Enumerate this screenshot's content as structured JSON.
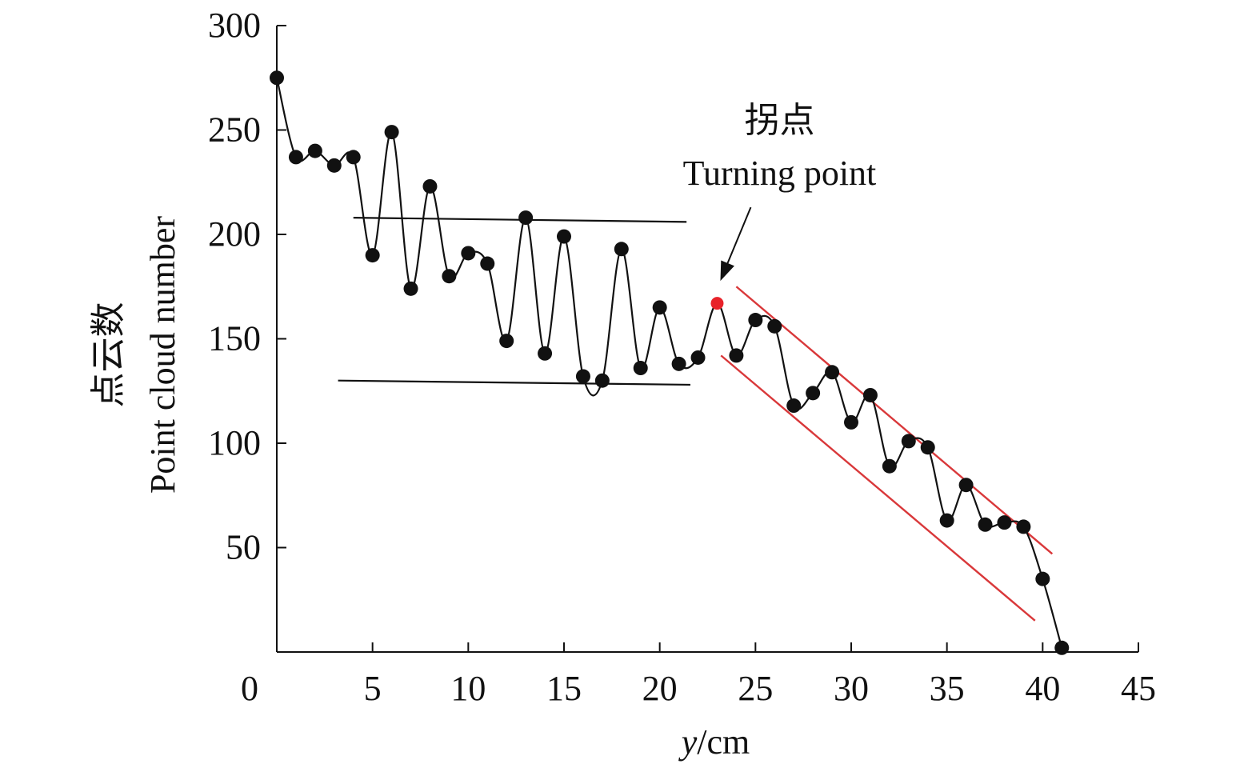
{
  "chart_data": {
    "type": "line",
    "title": "",
    "xlabel_italic": "y",
    "xlabel_unit": "/cm",
    "ylabel_cn": "点云数",
    "ylabel_en": "Point cloud number",
    "xlim": [
      0,
      45
    ],
    "ylim": [
      0,
      300
    ],
    "x_ticks": [
      5,
      10,
      15,
      20,
      25,
      30,
      35,
      40,
      45
    ],
    "y_ticks": [
      50,
      100,
      150,
      200,
      250,
      300
    ],
    "origin_label": "0",
    "series": [
      {
        "name": "Point cloud number",
        "x": [
          0,
          1,
          2,
          3,
          4,
          5,
          6,
          7,
          8,
          9,
          10,
          11,
          12,
          13,
          14,
          15,
          16,
          17,
          18,
          19,
          20,
          21,
          22,
          23,
          24,
          25,
          26,
          27,
          28,
          29,
          30,
          31,
          32,
          33,
          34,
          35,
          36,
          37,
          38,
          39,
          40,
          41
        ],
        "values": [
          275,
          237,
          240,
          233,
          237,
          190,
          249,
          174,
          223,
          180,
          191,
          186,
          149,
          208,
          143,
          199,
          132,
          130,
          193,
          136,
          165,
          138,
          141,
          167,
          142,
          159,
          156,
          118,
          124,
          134,
          110,
          123,
          89,
          101,
          98,
          63,
          80,
          61,
          62,
          60,
          35,
          2
        ]
      }
    ],
    "turning_point": {
      "x": 23,
      "y": 167,
      "label_cn": "拐点",
      "label_en": "Turning point"
    },
    "band_lines": [
      {
        "from": [
          4,
          208
        ],
        "to": [
          21.4,
          206
        ]
      },
      {
        "from": [
          3.2,
          130
        ],
        "to": [
          21.6,
          128
        ]
      }
    ],
    "trend_lines": [
      {
        "from": [
          24,
          175
        ],
        "to": [
          40.5,
          47
        ]
      },
      {
        "from": [
          23.2,
          142
        ],
        "to": [
          39.6,
          15
        ]
      }
    ],
    "colors": {
      "series": "#111111",
      "turning_point": "#e8232a",
      "trend_lines": "#d9383a"
    }
  }
}
